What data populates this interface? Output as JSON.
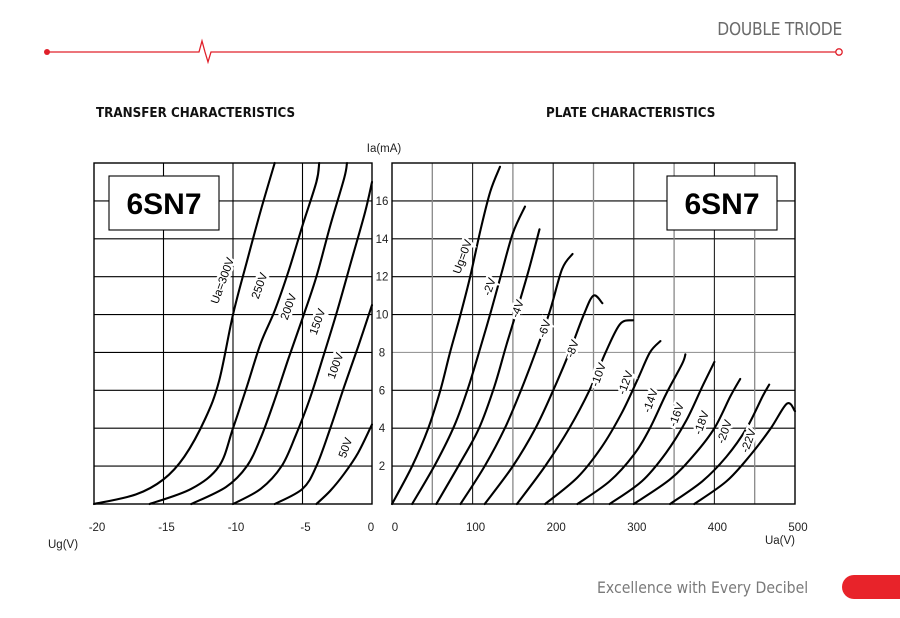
{
  "header": {
    "title": "DOUBLE TRIODE",
    "accent_color": "#e0202a"
  },
  "footer": {
    "tagline": "Excellence with Every Decibel",
    "accent_color": "#e8232a"
  },
  "chart_data": [
    {
      "type": "line",
      "title": "TRANSFER CHARACTERISTICS",
      "badge": "6SN7",
      "xlabel": "Ug(V)",
      "ylabel": "Ia(mA)",
      "xlim": [
        -20,
        0
      ],
      "ylim": [
        0,
        18
      ],
      "x_ticks": [
        "-20",
        "-15",
        "-10",
        "-5",
        "0"
      ],
      "y_ticks": [
        "2",
        "4",
        "6",
        "8",
        "10",
        "12",
        "14",
        "16"
      ],
      "grid": true,
      "series": [
        {
          "name": "Ua=300V",
          "label": "Ua=300V",
          "points": [
            [
              -20,
              0
            ],
            [
              -17,
              0.5
            ],
            [
              -15,
              1.3
            ],
            [
              -13.5,
              2.5
            ],
            [
              -12,
              4.5
            ],
            [
              -11,
              6.5
            ],
            [
              -10,
              10
            ],
            [
              -9,
              12.8
            ],
            [
              -8,
              15.5
            ],
            [
              -7,
              18
            ]
          ]
        },
        {
          "name": "250V",
          "label": "250V",
          "points": [
            [
              -16,
              0
            ],
            [
              -13,
              0.8
            ],
            [
              -11,
              2
            ],
            [
              -10,
              4
            ],
            [
              -9,
              6.2
            ],
            [
              -8,
              8.5
            ],
            [
              -7,
              10.2
            ],
            [
              -6,
              12.3
            ],
            [
              -5,
              14.7
            ],
            [
              -4,
              17
            ],
            [
              -3.8,
              18
            ]
          ]
        },
        {
          "name": "200V",
          "label": "200V",
          "points": [
            [
              -13,
              0
            ],
            [
              -10.5,
              0.9
            ],
            [
              -9,
              2
            ],
            [
              -8,
              3.5
            ],
            [
              -7,
              5.5
            ],
            [
              -6,
              7.7
            ],
            [
              -5,
              9.8
            ],
            [
              -4,
              12
            ],
            [
              -3,
              14.7
            ],
            [
              -2,
              17.2
            ],
            [
              -1.8,
              18
            ]
          ]
        },
        {
          "name": "150V",
          "label": "150V",
          "points": [
            [
              -10,
              0
            ],
            [
              -8,
              0.8
            ],
            [
              -6.5,
              2
            ],
            [
              -5.5,
              3.6
            ],
            [
              -4.5,
              5.5
            ],
            [
              -3.5,
              7.8
            ],
            [
              -2.5,
              10.2
            ],
            [
              -1.5,
              12.8
            ],
            [
              -0.5,
              15.4
            ],
            [
              0,
              17
            ]
          ]
        },
        {
          "name": "100V",
          "label": "100V",
          "points": [
            [
              -7,
              0
            ],
            [
              -5,
              0.8
            ],
            [
              -4,
              2
            ],
            [
              -3,
              4
            ],
            [
              -2,
              6.2
            ],
            [
              -1,
              8.3
            ],
            [
              0,
              10.5
            ]
          ]
        },
        {
          "name": "50V",
          "label": "50V",
          "points": [
            [
              -4,
              0
            ],
            [
              -3,
              0.7
            ],
            [
              -2,
              1.6
            ],
            [
              -1,
              2.7
            ],
            [
              0,
              4.2
            ]
          ]
        }
      ]
    },
    {
      "type": "line",
      "title": "PLATE CHARACTERISTICS",
      "badge": "6SN7",
      "xlabel": "Ua(V)",
      "ylabel": "Ia(mA)",
      "xlim": [
        0,
        500
      ],
      "ylim": [
        0,
        18
      ],
      "x_ticks": [
        "0",
        "100",
        "200",
        "300",
        "400",
        "500"
      ],
      "y_ticks": [
        "2",
        "4",
        "6",
        "8",
        "10",
        "12",
        "14",
        "16"
      ],
      "grid": true,
      "series": [
        {
          "name": "Ug=0V",
          "label": "Ug=0V",
          "points": [
            [
              0,
              0
            ],
            [
              25,
              2
            ],
            [
              45,
              4
            ],
            [
              60,
              6
            ],
            [
              72,
              8
            ],
            [
              85,
              10
            ],
            [
              97,
              12
            ],
            [
              110,
              14.5
            ],
            [
              122,
              16.5
            ],
            [
              134,
              17.8
            ]
          ]
        },
        {
          "name": "-2V",
          "label": "-2V",
          "points": [
            [
              25,
              0
            ],
            [
              55,
              2.2
            ],
            [
              78,
              4.2
            ],
            [
              95,
              6.2
            ],
            [
              110,
              8.3
            ],
            [
              123,
              10.2
            ],
            [
              136,
              12.2
            ],
            [
              150,
              14.3
            ],
            [
              165,
              15.7
            ]
          ]
        },
        {
          "name": "-4V",
          "label": "-4V",
          "points": [
            [
              55,
              0
            ],
            [
              85,
              2.2
            ],
            [
              108,
              4
            ],
            [
              127,
              6.2
            ],
            [
              142,
              8.4
            ],
            [
              157,
              10.5
            ],
            [
              170,
              12.4
            ],
            [
              183,
              14.5
            ]
          ]
        },
        {
          "name": "-6V",
          "label": "-6V",
          "points": [
            [
              85,
              0
            ],
            [
              115,
              2
            ],
            [
              140,
              4
            ],
            [
              160,
              6
            ],
            [
              178,
              8
            ],
            [
              196,
              10.2
            ],
            [
              211,
              12.4
            ],
            [
              224,
              13.2
            ]
          ]
        },
        {
          "name": "-8V",
          "label": "-8V",
          "points": [
            [
              115,
              0
            ],
            [
              150,
              2
            ],
            [
              178,
              4
            ],
            [
              200,
              6
            ],
            [
              220,
              8
            ],
            [
              238,
              10
            ],
            [
              250,
              11
            ],
            [
              261,
              10.6
            ]
          ]
        },
        {
          "name": "-10V",
          "label": "-10V",
          "points": [
            [
              155,
              0
            ],
            [
              190,
              2
            ],
            [
              220,
              4
            ],
            [
              245,
              6
            ],
            [
              265,
              8
            ],
            [
              283,
              9.5
            ],
            [
              299,
              9.7
            ]
          ]
        },
        {
          "name": "-12V",
          "label": "-12V",
          "points": [
            [
              190,
              0
            ],
            [
              230,
              1.4
            ],
            [
              260,
              3
            ],
            [
              285,
              4.8
            ],
            [
              305,
              6.6
            ],
            [
              320,
              8
            ],
            [
              333,
              8.6
            ]
          ]
        },
        {
          "name": "-14V",
          "label": "-14V",
          "points": [
            [
              230,
              0
            ],
            [
              270,
              1.2
            ],
            [
              300,
              2.6
            ],
            [
              320,
              4
            ],
            [
              340,
              5.8
            ],
            [
              360,
              7.4
            ],
            [
              364,
              7.9
            ]
          ]
        },
        {
          "name": "-16V",
          "label": "-16V",
          "points": [
            [
              270,
              0
            ],
            [
              310,
              1.2
            ],
            [
              340,
              2.7
            ],
            [
              365,
              4.4
            ],
            [
              385,
              6.2
            ],
            [
              400,
              7.5
            ]
          ]
        },
        {
          "name": "-18V",
          "label": "-18V",
          "points": [
            [
              300,
              0
            ],
            [
              345,
              1.3
            ],
            [
              375,
              2.6
            ],
            [
              400,
              4
            ],
            [
              420,
              5.7
            ],
            [
              432,
              6.6
            ]
          ]
        },
        {
          "name": "-20V",
          "label": "-20V",
          "points": [
            [
              345,
              0
            ],
            [
              385,
              1.2
            ],
            [
              415,
              2.5
            ],
            [
              440,
              4
            ],
            [
              460,
              5.7
            ],
            [
              468,
              6.3
            ]
          ]
        },
        {
          "name": "-22V",
          "label": "-22V",
          "points": [
            [
              375,
              0
            ],
            [
              415,
              1.2
            ],
            [
              445,
              2.6
            ],
            [
              470,
              4
            ],
            [
              490,
              5.3
            ],
            [
              500,
              4.9
            ]
          ]
        }
      ]
    }
  ]
}
